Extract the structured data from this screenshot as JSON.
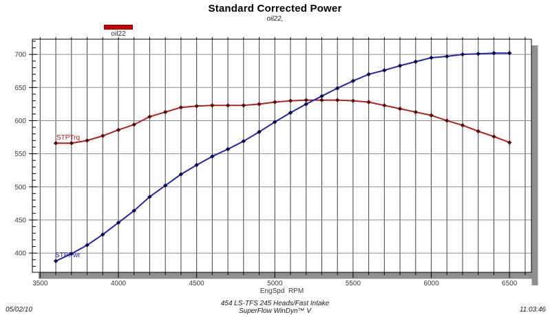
{
  "header": {
    "title": "Standard Corrected Power",
    "subtitle": "oil22,"
  },
  "legend": {
    "label": "oil22",
    "swatch_color": "#cc0000",
    "swatch_border_color": "#7a0000"
  },
  "chart_data": {
    "type": "line",
    "title": "Standard Corrected Power",
    "subtitle": "oil22,",
    "xlabel": "EngSpd  RPM",
    "ylabel": "",
    "x": [
      3600,
      3700,
      3800,
      3900,
      4000,
      4100,
      4200,
      4300,
      4400,
      4500,
      4600,
      4700,
      4800,
      4900,
      5000,
      5100,
      5200,
      5300,
      5400,
      5500,
      5600,
      5700,
      5800,
      5900,
      6000,
      6100,
      6200,
      6300,
      6400,
      6500
    ],
    "series": [
      {
        "name": "STPTrq",
        "line_color": "#b02020",
        "marker_color": "#5e0000",
        "values": [
          566,
          566,
          570,
          577,
          586,
          594,
          606,
          613,
          620,
          622,
          623,
          623,
          623,
          625,
          628,
          630,
          631,
          631,
          631,
          630,
          628,
          623,
          618,
          613,
          608,
          600,
          593,
          584,
          576,
          567
        ]
      },
      {
        "name": "STPPwr",
        "line_color": "#2424a8",
        "marker_color": "#000050",
        "values": [
          388,
          399,
          412,
          428,
          446,
          464,
          485,
          502,
          519,
          533,
          546,
          557,
          569,
          583,
          598,
          612,
          625,
          637,
          649,
          660,
          670,
          676,
          683,
          689,
          695,
          697,
          700,
          701,
          702,
          702
        ]
      }
    ],
    "xlim": [
      3450,
      6640
    ],
    "ylim": [
      371,
      723
    ],
    "x_major_ticks": [
      3500,
      4000,
      4500,
      5000,
      5500,
      6000,
      6500
    ],
    "x_minor_step": 100,
    "y_major_ticks": [
      400,
      450,
      500,
      550,
      600,
      650,
      700
    ],
    "y_minor_step": 10,
    "grid": "both",
    "legend_position": "top-left",
    "grid_color_vertical": "#3f3f3f",
    "grid_color_horizontal": "#8a8a8a",
    "frame_color": "#000000",
    "shadow_color": "#8f8f8f",
    "tick_label_color": "#3a3a3a"
  },
  "footer": {
    "date": "05/02/10",
    "test_name": "454 LS-TFS 245 Heads/Fast Intake",
    "software": "SuperFlow WinDyn™ V",
    "time": "11:03:46"
  }
}
